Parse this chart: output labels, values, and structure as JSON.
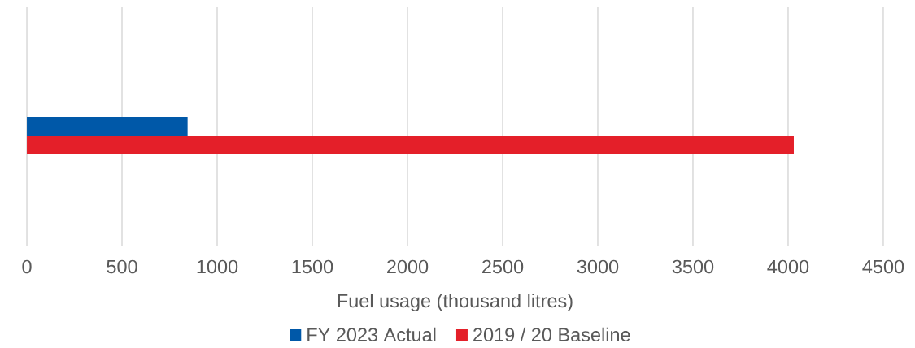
{
  "chart_data": {
    "type": "bar",
    "orientation": "horizontal",
    "categories": [
      null
    ],
    "xlabel": "Fuel usage (thousand litres)",
    "xlim": [
      0,
      4500
    ],
    "xticks": [
      0,
      500,
      1000,
      1500,
      2000,
      2500,
      3000,
      3500,
      4000,
      4500
    ],
    "grid": "x",
    "legend": "bottom",
    "series": [
      {
        "name": "FY 2023 Actual",
        "color": "#0058a8",
        "values": [
          845
        ]
      },
      {
        "name": "2019 / 20 Baseline",
        "color": "#e41f29",
        "values": [
          4030
        ]
      }
    ]
  }
}
